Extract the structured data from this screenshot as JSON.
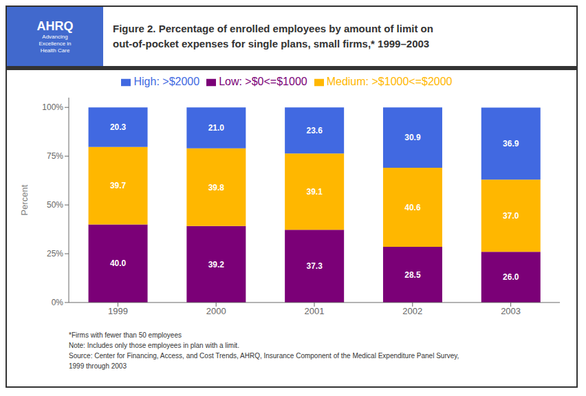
{
  "chart_data": {
    "type": "bar",
    "title": "Figure 2. Percentage of enrolled employees by amount of limit on\nout-of-pocket expenses for single plans, small firms,* 1999–2003",
    "y_label": "Percent",
    "categories": [
      "1999",
      "2000",
      "2001",
      "2002",
      "2003"
    ],
    "series": [
      {
        "name": "Low: >$0<=$1000",
        "color": "#7B0077",
        "values": [
          40.0,
          39.2,
          37.3,
          28.5,
          26.0
        ],
        "value_labels": [
          "40.0",
          "39.2",
          "37.3",
          "28.5",
          "26.0"
        ]
      },
      {
        "name": "Medium: >$1000<=$2000",
        "color": "#FFB700",
        "values": [
          39.7,
          39.8,
          39.1,
          40.6,
          37.0
        ],
        "value_labels": [
          "39.7",
          "39.8",
          "39.1",
          "40.6",
          "37.0"
        ]
      },
      {
        "name": "High: >$2000",
        "color": "#4169E1",
        "values": [
          20.3,
          21.0,
          23.6,
          30.9,
          36.9
        ],
        "value_labels": [
          "20.3",
          "21.0",
          "23.6",
          "30.9",
          "36.9"
        ]
      }
    ],
    "stacked": true,
    "data_labels": true,
    "legend": "top",
    "grid": false,
    "ylim": [
      0,
      105
    ],
    "yticks": [
      {
        "value": 0,
        "label": "0%"
      },
      {
        "value": 25,
        "label": "25%"
      },
      {
        "value": 50,
        "label": "50%"
      },
      {
        "value": 75,
        "label": "75%"
      },
      {
        "value": 100,
        "label": "100%"
      }
    ],
    "annotations": [
      "AHRQ",
      "Advancing\nExcellence in\nHealth Care",
      "*Firms with fewer than 50 employees",
      "Note: Includes only those employees in plan with a limit.",
      "Source: Center for Financing, Access, and Cost Trends, AHRQ, Insurance Component of the Medical Expenditure Panel Survey,",
      "1999 through 2003"
    ]
  }
}
